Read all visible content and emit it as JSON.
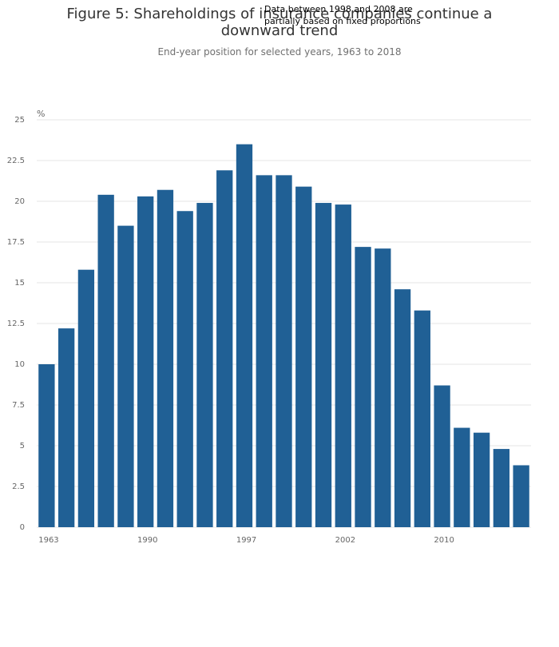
{
  "chart_data": {
    "type": "bar",
    "title": "Figure 5: Shareholdings of insurance companies continue a downward trend",
    "subtitle": "End-year position for selected years, 1963 to 2018",
    "annotation": "Data between 1998 and 2008 are partially based on fixed proportions",
    "y_label": "%",
    "categories": [
      "1963",
      null,
      null,
      null,
      null,
      "1990",
      null,
      null,
      null,
      null,
      "1997",
      null,
      null,
      null,
      null,
      "2002",
      null,
      null,
      null,
      null,
      "2010",
      null,
      null,
      null,
      null
    ],
    "values": [
      10.0,
      12.2,
      15.8,
      20.4,
      18.5,
      20.3,
      20.7,
      19.4,
      19.9,
      21.9,
      23.5,
      21.6,
      21.6,
      20.9,
      19.9,
      19.8,
      17.2,
      17.1,
      14.6,
      13.3,
      8.7,
      6.1,
      5.8,
      4.8,
      3.8
    ],
    "color": "#206095",
    "ylim": [
      0,
      25
    ],
    "yticks": [
      0,
      2.5,
      5,
      7.5,
      10,
      12.5,
      15,
      17.5,
      20,
      22.5,
      25
    ],
    "grid": true
  }
}
